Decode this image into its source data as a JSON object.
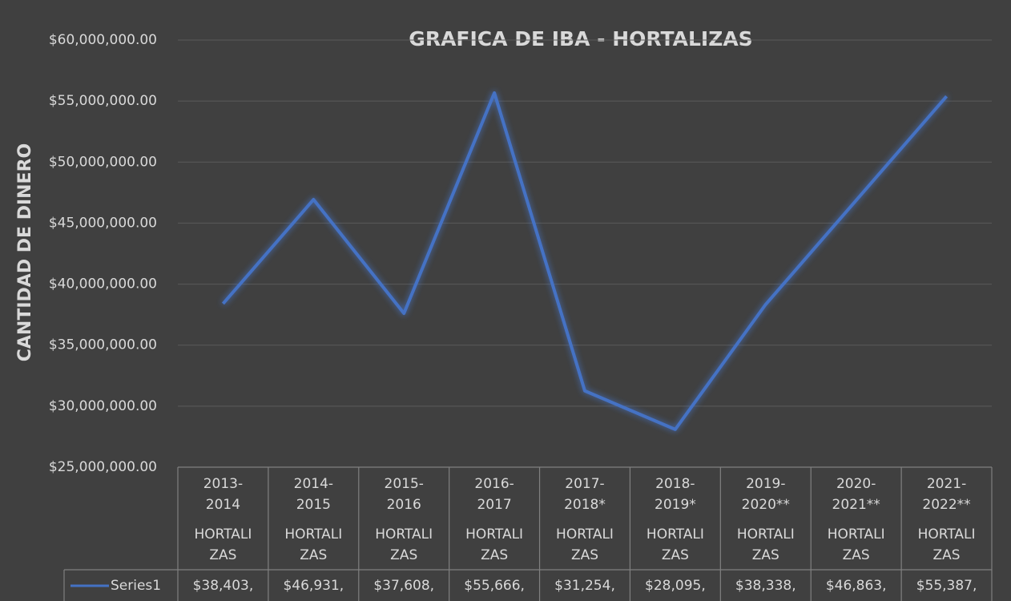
{
  "chart_data": {
    "type": "line",
    "title": "GRAFICA DE IBA - HORTALIZAS",
    "y_label": "CANTIDAD DE DINERO",
    "categories": [
      "2013-2014",
      "2014-2015",
      "2015-2016",
      "2016-2017",
      "2017-2018*",
      "2018-2019*",
      "2019-2020**",
      "2020-2021**",
      "2021-2022**"
    ],
    "category_group": [
      "HORTALIZAS",
      "HORTALIZAS",
      "HORTALIZAS",
      "HORTALIZAS",
      "HORTALIZAS",
      "HORTALIZAS",
      "HORTALIZAS",
      "HORTALIZAS",
      "HORTALIZAS"
    ],
    "series": [
      {
        "name": "Series1",
        "color": "#4472c4",
        "values": [
          38403000,
          46931000,
          37608000,
          55666000,
          31254000,
          28095000,
          38338000,
          46863000,
          55387000
        ],
        "value_labels": [
          "$38,403,",
          "$46,931,",
          "$37,608,",
          "$55,666,",
          "$31,254,",
          "$28,095,",
          "$38,338,",
          "$46,863,",
          "$55,387,"
        ]
      }
    ],
    "ylim": [
      25000000,
      60000000
    ],
    "yticks": [
      {
        "value": 25000000,
        "label": "$25,000,000.00"
      },
      {
        "value": 30000000,
        "label": "$30,000,000.00"
      },
      {
        "value": 35000000,
        "label": "$35,000,000.00"
      },
      {
        "value": 40000000,
        "label": "$40,000,000.00"
      },
      {
        "value": 45000000,
        "label": "$45,000,000.00"
      },
      {
        "value": 50000000,
        "label": "$50,000,000.00"
      },
      {
        "value": 55000000,
        "label": "$55,000,000.00"
      },
      {
        "value": 60000000,
        "label": "$60,000,000.00"
      }
    ],
    "grid": true
  }
}
